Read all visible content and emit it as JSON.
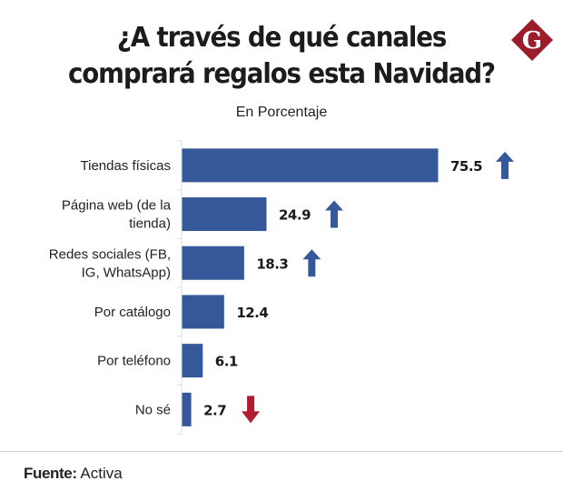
{
  "header": {
    "title_line1": "¿A través de qué canales",
    "title_line2": "comprará regalos esta Navidad?",
    "subtitle": "En Porcentaje",
    "logo_letter": "G",
    "logo_icon": "gestion-diamond-logo-icon",
    "logo_color": "#9b1c2a"
  },
  "chart_data": {
    "type": "bar",
    "orientation": "horizontal",
    "title": "¿A través de qué canales comprará regalos esta Navidad?",
    "subtitle": "En Porcentaje",
    "xlabel": "",
    "ylabel": "",
    "xlim": [
      0,
      75.5
    ],
    "grid": false,
    "categories": [
      [
        "Tiendas físicas"
      ],
      [
        "Página web (de la",
        "tienda)"
      ],
      [
        "Redes sociales (FB,",
        "IG, WhatsApp)"
      ],
      [
        "Por catálogo"
      ],
      [
        "Por teléfono"
      ],
      [
        "No sé"
      ]
    ],
    "values": [
      75.5,
      24.9,
      18.3,
      12.4,
      6.1,
      2.7
    ],
    "value_labels": [
      "75.5",
      "24.9",
      "18.3",
      "12.4",
      "6.1",
      "2.7"
    ],
    "trends": [
      "up",
      "up",
      "up",
      "none",
      "none",
      "down"
    ],
    "bar_color": "#35589a",
    "trend_up_color": "#35589a",
    "trend_down_color": "#b31b2f",
    "axis_color": "#d8dce6"
  },
  "footer": {
    "source_label": "Fuente:",
    "source_value": "Activa"
  }
}
